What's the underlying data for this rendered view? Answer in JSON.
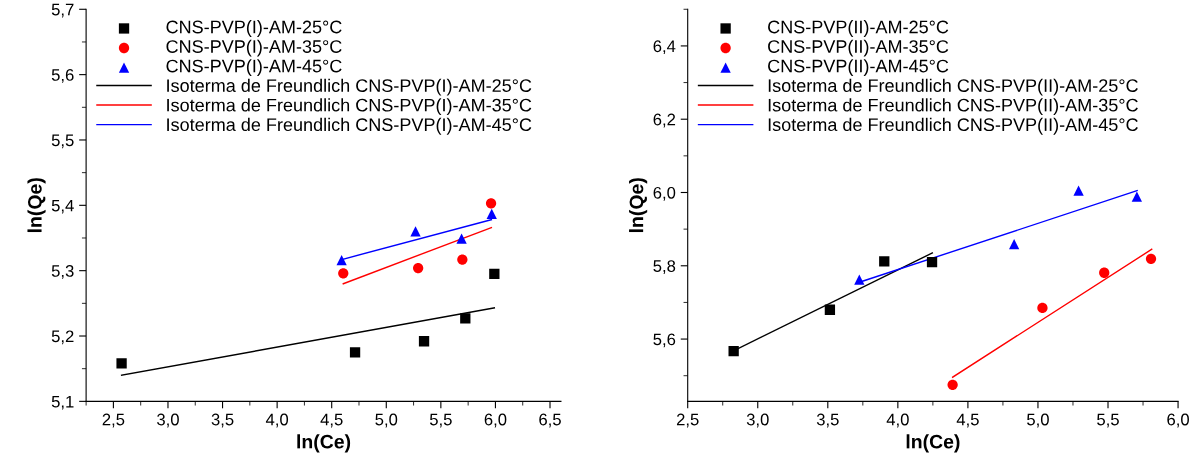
{
  "chart_data": [
    {
      "type": "scatter",
      "xlabel": "ln(Ce)",
      "ylabel": "ln(Qe)",
      "legend": "top left",
      "grid": false,
      "xlim": [
        2.25,
        6.6
      ],
      "ylim": [
        5.1,
        5.7
      ],
      "xticks": [
        {
          "value": 2.5,
          "label": "2,5"
        },
        {
          "value": 3.0,
          "label": "3,0"
        },
        {
          "value": 3.5,
          "label": "3,5"
        },
        {
          "value": 4.0,
          "label": "4,0"
        },
        {
          "value": 4.5,
          "label": "4,5"
        },
        {
          "value": 5.0,
          "label": "5,0"
        },
        {
          "value": 5.5,
          "label": "5,5"
        },
        {
          "value": 6.0,
          "label": "6,0"
        },
        {
          "value": 6.5,
          "label": "6,5"
        }
      ],
      "yticks": [
        {
          "value": 5.1,
          "label": "5,1"
        },
        {
          "value": 5.2,
          "label": "5,2"
        },
        {
          "value": 5.3,
          "label": "5,3"
        },
        {
          "value": 5.4,
          "label": "5,4"
        },
        {
          "value": 5.5,
          "label": "5,5"
        },
        {
          "value": 5.6,
          "label": "5,6"
        },
        {
          "value": 5.7,
          "label": "5,7"
        }
      ],
      "series": [
        {
          "name": "CNS-PVP(I)-AM-25°C",
          "marker": "square",
          "color": "#000000",
          "x": [
            2.575,
            4.714,
            5.346,
            5.724,
            5.99
          ],
          "values": [
            5.158,
            5.175,
            5.192,
            5.227,
            5.295
          ]
        },
        {
          "name": "CNS-PVP(I)-AM-35°C",
          "marker": "circle",
          "color": "#ff0000",
          "x": [
            4.606,
            5.292,
            5.697,
            5.96
          ],
          "values": [
            5.296,
            5.304,
            5.317,
            5.403
          ]
        },
        {
          "name": "CNS-PVP(I)-AM-45°C",
          "marker": "triangle",
          "color": "#0000ff",
          "x": [
            4.591,
            5.268,
            5.69,
            5.966
          ],
          "values": [
            5.316,
            5.36,
            5.349,
            5.387
          ]
        },
        {
          "name": "Isoterma de Freundlich CNS-PVP(I)-AM-25°C",
          "type": "line",
          "line_style": "solid",
          "color": "#000000",
          "x": [
            2.575,
            5.99
          ],
          "values": [
            5.14,
            5.243
          ]
        },
        {
          "name": "Isoterma de Freundlich CNS-PVP(I)-AM-35°C",
          "type": "line",
          "line_style": "solid",
          "color": "#ff0000",
          "x": [
            4.606,
            5.963
          ],
          "values": [
            5.28,
            5.366
          ]
        },
        {
          "name": "Isoterma de Freundlich CNS-PVP(I)-AM-45°C",
          "type": "line",
          "line_style": "solid",
          "color": "#0000ff",
          "x": [
            4.591,
            5.963
          ],
          "values": [
            5.317,
            5.378
          ]
        }
      ]
    },
    {
      "type": "scatter",
      "xlabel": "ln(Ce)",
      "ylabel": "ln(Qe)",
      "legend": "top left",
      "grid": false,
      "xlim": [
        2.5,
        6.0
      ],
      "ylim": [
        5.43,
        6.5
      ],
      "xticks": [
        {
          "value": 2.5,
          "label": "2,5"
        },
        {
          "value": 3.0,
          "label": "3,0"
        },
        {
          "value": 3.5,
          "label": "3,5"
        },
        {
          "value": 4.0,
          "label": "4,0"
        },
        {
          "value": 4.5,
          "label": "4,5"
        },
        {
          "value": 5.0,
          "label": "5,0"
        },
        {
          "value": 5.5,
          "label": "5,5"
        },
        {
          "value": 6.0,
          "label": "6,0"
        }
      ],
      "yticks": [
        {
          "value": 5.6,
          "label": "5,6"
        },
        {
          "value": 5.8,
          "label": "5,8"
        },
        {
          "value": 6.0,
          "label": "6,0"
        },
        {
          "value": 6.2,
          "label": "6,2"
        },
        {
          "value": 6.4,
          "label": "6,4"
        }
      ],
      "series": [
        {
          "name": "CNS-PVP(II)-AM-25°C",
          "marker": "square",
          "color": "#000000",
          "x": [
            2.828,
            3.515,
            3.903,
            4.244
          ],
          "values": [
            5.567,
            5.68,
            5.812,
            5.81
          ]
        },
        {
          "name": "CNS-PVP(II)-AM-35°C",
          "marker": "circle",
          "color": "#ff0000",
          "x": [
            4.391,
            5.032,
            5.473,
            5.807
          ],
          "values": [
            5.475,
            5.685,
            5.781,
            5.819
          ]
        },
        {
          "name": "CNS-PVP(II)-AM-45°C",
          "marker": "triangle",
          "color": "#0000ff",
          "x": [
            3.725,
            4.83,
            5.29,
            5.706
          ],
          "values": [
            5.762,
            5.859,
            6.005,
            5.989
          ]
        },
        {
          "name": "Isoterma de Freundlich CNS-PVP(II)-AM-25°C",
          "type": "line",
          "line_style": "solid",
          "color": "#000000",
          "x": [
            2.849,
            4.246
          ],
          "values": [
            5.572,
            5.835
          ]
        },
        {
          "name": "Isoterma de Freundlich CNS-PVP(II)-AM-35°C",
          "type": "line",
          "line_style": "solid",
          "color": "#ff0000",
          "x": [
            4.391,
            5.812
          ],
          "values": [
            5.496,
            5.845
          ]
        },
        {
          "name": "Isoterma de Freundlich CNS-PVP(II)-AM-45°C",
          "type": "line",
          "line_style": "solid",
          "color": "#0000ff",
          "x": [
            3.725,
            5.708
          ],
          "values": [
            5.755,
            6.005
          ]
        }
      ]
    }
  ]
}
